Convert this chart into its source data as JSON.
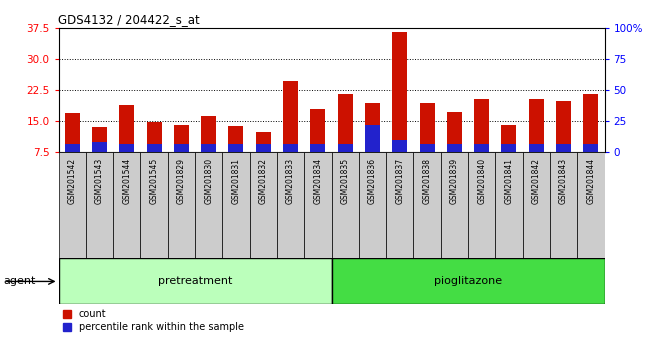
{
  "title": "GDS4132 / 204422_s_at",
  "samples": [
    "GSM201542",
    "GSM201543",
    "GSM201544",
    "GSM201545",
    "GSM201829",
    "GSM201830",
    "GSM201831",
    "GSM201832",
    "GSM201833",
    "GSM201834",
    "GSM201835",
    "GSM201836",
    "GSM201837",
    "GSM201838",
    "GSM201839",
    "GSM201840",
    "GSM201841",
    "GSM201842",
    "GSM201843",
    "GSM201844"
  ],
  "count_values": [
    17.0,
    13.5,
    19.0,
    14.8,
    14.2,
    16.2,
    13.8,
    12.3,
    24.8,
    18.0,
    21.5,
    19.5,
    36.5,
    19.5,
    17.2,
    20.5,
    14.2,
    20.5,
    19.8,
    21.5
  ],
  "percentile_values": [
    9.5,
    10.0,
    9.5,
    9.5,
    9.5,
    9.5,
    9.5,
    9.5,
    9.5,
    9.5,
    9.5,
    14.0,
    10.5,
    9.5,
    9.5,
    9.5,
    9.5,
    9.5,
    9.5,
    9.5
  ],
  "bar_color": "#cc1100",
  "percentile_color": "#2222cc",
  "ylim_left": [
    7.5,
    37.5
  ],
  "yticks_left": [
    7.5,
    15.0,
    22.5,
    30.0,
    37.5
  ],
  "ylim_right": [
    0,
    100
  ],
  "yticks_right": [
    0,
    25,
    50,
    75,
    100
  ],
  "yticklabels_right": [
    "0",
    "25",
    "50",
    "75",
    "100%"
  ],
  "bar_width": 0.55,
  "pretreatment_label": "pretreatment",
  "pioglitazone_label": "pioglitazone",
  "pretreatment_count": 10,
  "pioglitazone_count": 10,
  "agent_label": "agent",
  "legend_count_label": "count",
  "legend_percentile_label": "percentile rank within the sample",
  "grid_color": "#000000",
  "plot_bg": "#ffffff",
  "tick_bg": "#cccccc",
  "pretreatment_bg": "#bbffbb",
  "pioglitazone_bg": "#44dd44",
  "bar_bottom": 7.5
}
